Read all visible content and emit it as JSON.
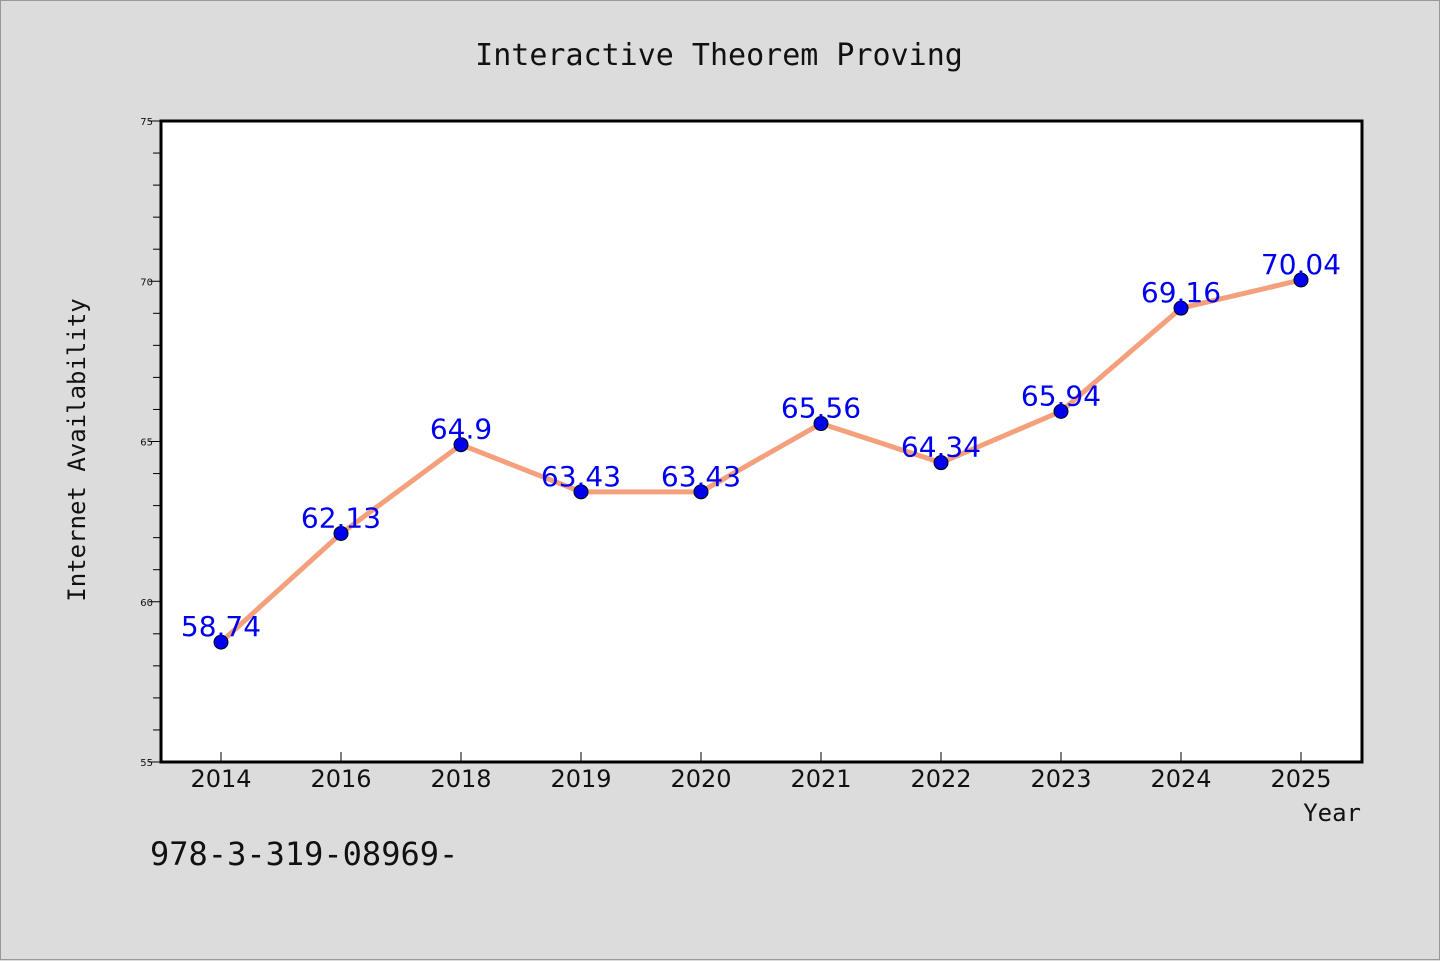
{
  "chart_data": {
    "type": "line",
    "title": "Interactive Theorem Proving",
    "xlabel": "Year",
    "ylabel": "Internet Availability",
    "categories": [
      "2014",
      "2016",
      "2018",
      "2019",
      "2020",
      "2021",
      "2022",
      "2023",
      "2024",
      "2025"
    ],
    "series": [
      {
        "values": [
          58.74,
          62.13,
          64.9,
          63.43,
          63.43,
          65.56,
          64.34,
          65.94,
          69.16,
          70.04
        ],
        "labels": [
          "58.74",
          "62.13",
          "64.9",
          "63.43",
          "63.43",
          "65.56",
          "64.34",
          "65.94",
          "69.16",
          "70.04"
        ]
      }
    ],
    "ylim": [
      55,
      75
    ],
    "yticks": [
      55,
      60,
      65,
      70,
      75
    ],
    "grid": false,
    "colors": {
      "line": "#f4a07c",
      "marker": "#0000ee",
      "label": "#0000ee",
      "background": "#dcdcdc",
      "plot_background": "#ffffff"
    }
  },
  "footnote": "978-3-319-08969-"
}
